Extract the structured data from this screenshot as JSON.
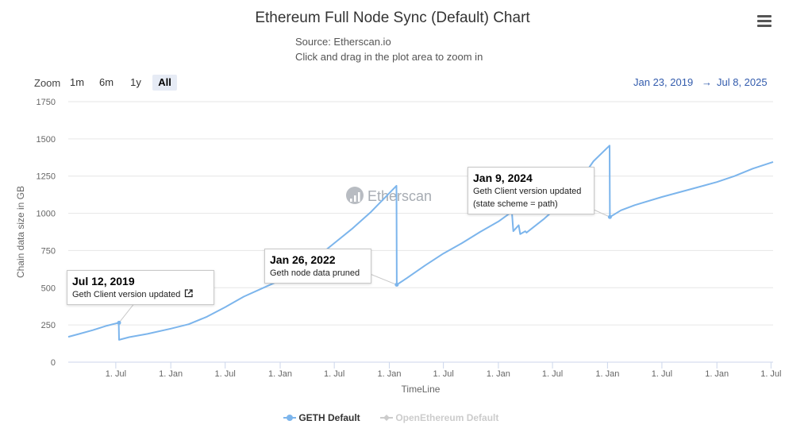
{
  "chart_data": {
    "type": "line",
    "title": "Ethereum Full Node Sync (Default) Chart",
    "subtitle_lines": [
      "Source: Etherscan.io",
      "Click and drag in the plot area to zoom in"
    ],
    "xlabel": "TimeLine",
    "ylabel": "Chain data size in GB",
    "ylim": [
      0,
      1750
    ],
    "y_ticks": [
      0,
      250,
      500,
      750,
      1000,
      1250,
      1500,
      1750
    ],
    "xlim": [
      "2019-01-23",
      "2025-07-08"
    ],
    "x_ticks": [
      {
        "date": "2019-07-01",
        "label": "1. Jul"
      },
      {
        "date": "2020-01-01",
        "label": "1. Jan"
      },
      {
        "date": "2020-07-01",
        "label": "1. Jul"
      },
      {
        "date": "2021-01-01",
        "label": "1. Jan"
      },
      {
        "date": "2021-07-01",
        "label": "1. Jul"
      },
      {
        "date": "2022-01-01",
        "label": "1. Jan"
      },
      {
        "date": "2022-07-01",
        "label": "1. Jul"
      },
      {
        "date": "2023-01-01",
        "label": "1. Jan"
      },
      {
        "date": "2023-07-01",
        "label": "1. Jul"
      },
      {
        "date": "2024-01-01",
        "label": "1. Jan"
      },
      {
        "date": "2024-07-01",
        "label": "1. Jul"
      },
      {
        "date": "2025-01-01",
        "label": "1. Jan"
      },
      {
        "date": "2025-07-01",
        "label": "1. Jul"
      }
    ],
    "grid": true,
    "legend_position": "bottom-center",
    "series": [
      {
        "name": "GETH Default",
        "color": "#7cb5ec",
        "visible": true,
        "points": [
          [
            "2019-01-23",
            170
          ],
          [
            "2019-03-01",
            190
          ],
          [
            "2019-04-15",
            215
          ],
          [
            "2019-06-01",
            245
          ],
          [
            "2019-07-11",
            265
          ],
          [
            "2019-07-12",
            150
          ],
          [
            "2019-08-15",
            168
          ],
          [
            "2019-10-15",
            190
          ],
          [
            "2020-01-01",
            225
          ],
          [
            "2020-03-01",
            255
          ],
          [
            "2020-05-01",
            305
          ],
          [
            "2020-07-01",
            370
          ],
          [
            "2020-09-01",
            440
          ],
          [
            "2020-11-01",
            495
          ],
          [
            "2021-01-01",
            550
          ],
          [
            "2021-03-01",
            620
          ],
          [
            "2021-05-01",
            700
          ],
          [
            "2021-07-01",
            800
          ],
          [
            "2021-09-01",
            900
          ],
          [
            "2021-11-01",
            1010
          ],
          [
            "2022-01-25",
            1185
          ],
          [
            "2022-01-26",
            520
          ],
          [
            "2022-03-01",
            565
          ],
          [
            "2022-05-01",
            650
          ],
          [
            "2022-07-01",
            730
          ],
          [
            "2022-09-01",
            800
          ],
          [
            "2022-11-01",
            875
          ],
          [
            "2023-01-01",
            945
          ],
          [
            "2023-02-15",
            1010
          ],
          [
            "2023-02-20",
            880
          ],
          [
            "2023-03-10",
            920
          ],
          [
            "2023-03-15",
            860
          ],
          [
            "2023-04-01",
            880
          ],
          [
            "2023-04-05",
            870
          ],
          [
            "2023-06-01",
            960
          ],
          [
            "2023-08-01",
            1070
          ],
          [
            "2023-10-01",
            1220
          ],
          [
            "2023-11-15",
            1350
          ],
          [
            "2024-01-08",
            1455
          ],
          [
            "2024-01-09",
            975
          ],
          [
            "2024-02-15",
            1020
          ],
          [
            "2024-04-01",
            1055
          ],
          [
            "2024-07-01",
            1110
          ],
          [
            "2024-10-01",
            1160
          ],
          [
            "2025-01-01",
            1210
          ],
          [
            "2025-03-01",
            1250
          ],
          [
            "2025-05-01",
            1300
          ],
          [
            "2025-07-08",
            1345
          ]
        ]
      },
      {
        "name": "OpenEthereum Default",
        "color": "#cccccc",
        "visible": false,
        "points": []
      }
    ],
    "annotations": [
      {
        "date": "Jul 12, 2019",
        "text": "Geth Client version updated",
        "has_link_icon": true,
        "x": "2019-07-12",
        "y": 265
      },
      {
        "date": "Jan 26, 2022",
        "text": "Geth node data pruned",
        "has_link_icon": false,
        "x": "2022-01-26",
        "y": 520
      },
      {
        "date": "Jan 9, 2024",
        "text": "Geth Client version updated\n(state scheme = path)",
        "has_link_icon": false,
        "x": "2024-01-09",
        "y": 975
      }
    ],
    "watermark": "Etherscan"
  },
  "controls": {
    "zoom_label": "Zoom",
    "zoom_buttons": [
      {
        "label": "1m",
        "active": false
      },
      {
        "label": "6m",
        "active": false
      },
      {
        "label": "1y",
        "active": false
      },
      {
        "label": "All",
        "active": true
      }
    ],
    "range_from": "Jan 23, 2019",
    "range_sep": "→",
    "range_to": "Jul 8, 2025",
    "menu_icon": "hamburger-menu-icon"
  }
}
